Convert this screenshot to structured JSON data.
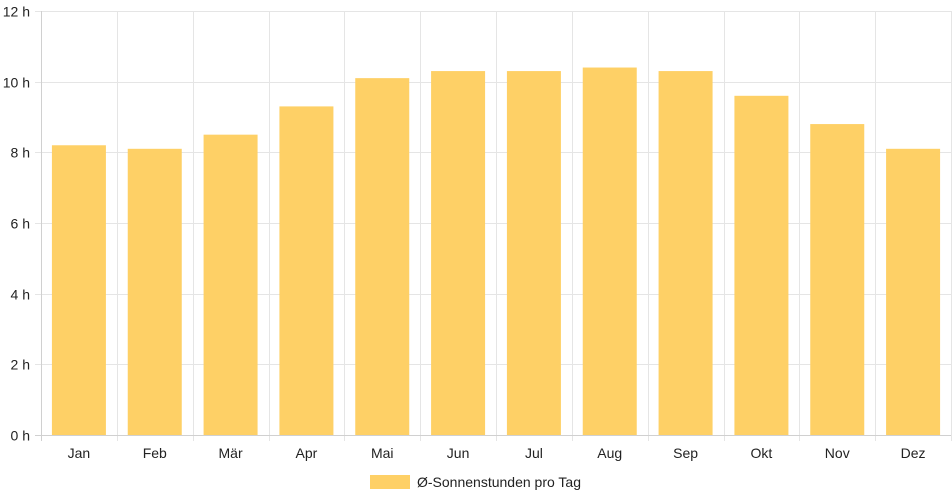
{
  "chart_data": {
    "type": "bar",
    "title": "",
    "xlabel": "",
    "ylabel": "",
    "categories": [
      "Jan",
      "Feb",
      "Mär",
      "Apr",
      "Mai",
      "Jun",
      "Jul",
      "Aug",
      "Sep",
      "Okt",
      "Nov",
      "Dez"
    ],
    "series": [
      {
        "name": "Ø-Sonnenstunden pro Tag",
        "values": [
          8.2,
          8.1,
          8.5,
          9.3,
          10.1,
          10.3,
          10.3,
          10.4,
          10.3,
          9.6,
          8.8,
          8.1
        ]
      }
    ],
    "ylim": [
      0,
      12
    ],
    "yticks": [
      0,
      2,
      4,
      6,
      8,
      10,
      12
    ],
    "ytick_labels": [
      "0 h",
      "2 h",
      "4 h",
      "6 h",
      "8 h",
      "10 h",
      "12 h"
    ],
    "grid": true,
    "legend": "bottom",
    "colors": {
      "bar": "#fed066",
      "grid": "#e5e5e5",
      "axis": "#d0d0d0"
    }
  }
}
